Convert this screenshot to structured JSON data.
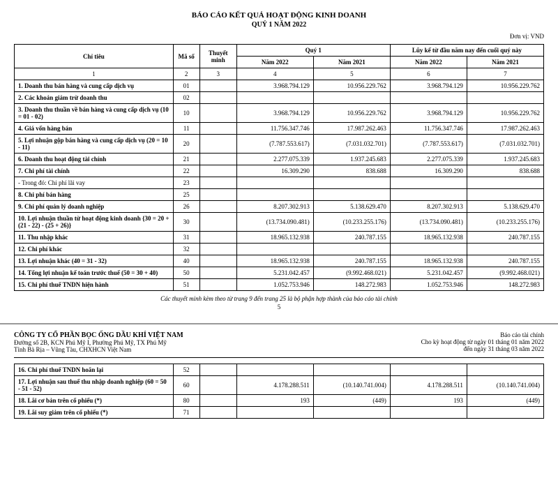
{
  "title1": "BÁO CÁO KẾT QUẢ HOẠT ĐỘNG KINH DOANH",
  "title2": "QUÝ 1 NĂM 2022",
  "unit": "Đơn vị: VND",
  "cols": {
    "chitieu": "Chỉ tiêu",
    "maso": "Mã số",
    "thuyetminh": "Thuyết minh",
    "quy1": "Quý 1",
    "luyke": "Lũy kế từ đầu năm nay đến cuối quý này",
    "n2022": "Năm 2022",
    "n2021": "Năm 2021"
  },
  "idx": {
    "c1": "1",
    "c2": "2",
    "c3": "3",
    "c4": "4",
    "c5": "5",
    "c6": "6",
    "c7": "7"
  },
  "rows": [
    {
      "lbl": "1. Doanh thu bán hàng và cung cấp dịch vụ",
      "ms": "01",
      "tm": "",
      "a": "3.968.794.129",
      "b": "10.956.229.762",
      "c": "3.968.794.129",
      "d": "10.956.229.762"
    },
    {
      "lbl": "2. Các khoản giảm trừ doanh thu",
      "ms": "02",
      "tm": "",
      "a": "",
      "b": "",
      "c": "",
      "d": ""
    },
    {
      "lbl": "3. Doanh thu thuần về bán hàng và cung cấp dịch vụ (10 = 01 - 02)",
      "ms": "10",
      "tm": "",
      "a": "3.968.794.129",
      "b": "10.956.229.762",
      "c": "3.968.794.129",
      "d": "10.956.229.762"
    },
    {
      "lbl": "4. Giá vốn hàng bán",
      "ms": "11",
      "tm": "",
      "a": "11.756.347.746",
      "b": "17.987.262.463",
      "c": "11.756.347.746",
      "d": "17.987.262.463"
    },
    {
      "lbl": "5. Lợi nhuận gộp bán hàng và cung cấp dịch vụ (20 = 10 - 11)",
      "ms": "20",
      "tm": "",
      "a": "(7.787.553.617)",
      "b": "(7.031.032.701)",
      "c": "(7.787.553.617)",
      "d": "(7.031.032.701)"
    },
    {
      "lbl": "6. Doanh thu hoạt động tài chính",
      "ms": "21",
      "tm": "",
      "a": "2.277.075.339",
      "b": "1.937.245.683",
      "c": "2.277.075.339",
      "d": "1.937.245.683"
    },
    {
      "lbl": "7. Chi phí tài chính",
      "ms": "22",
      "tm": "",
      "a": "16.309.290",
      "b": "838.688",
      "c": "16.309.290",
      "d": "838.688"
    },
    {
      "lbl": "- Trong đó: Chi phí lãi vay",
      "ms": "23",
      "tm": "",
      "a": "",
      "b": "",
      "c": "",
      "d": "",
      "plain": true
    },
    {
      "lbl": "8. Chi phí bán hàng",
      "ms": "25",
      "tm": "",
      "a": "",
      "b": "",
      "c": "",
      "d": ""
    },
    {
      "lbl": "9. Chi phí quản lý doanh nghiệp",
      "ms": "26",
      "tm": "",
      "a": "8.207.302.913",
      "b": "5.138.629.470",
      "c": "8.207.302.913",
      "d": "5.138.629.470"
    },
    {
      "lbl": "10. Lợi nhuận thuần từ hoạt động kinh doanh {30 = 20 + (21 - 22) - (25 + 26)}",
      "ms": "30",
      "tm": "",
      "a": "(13.734.090.481)",
      "b": "(10.233.255.176)",
      "c": "(13.734.090.481)",
      "d": "(10.233.255.176)"
    },
    {
      "lbl": "11. Thu nhập khác",
      "ms": "31",
      "tm": "",
      "a": "18.965.132.938",
      "b": "240.787.155",
      "c": "18.965.132.938",
      "d": "240.787.155"
    },
    {
      "lbl": "12. Chi phí khác",
      "ms": "32",
      "tm": "",
      "a": "",
      "b": "",
      "c": "",
      "d": ""
    },
    {
      "lbl": "13. Lợi nhuận khác (40 = 31 - 32)",
      "ms": "40",
      "tm": "",
      "a": "18.965.132.938",
      "b": "240.787.155",
      "c": "18.965.132.938",
      "d": "240.787.155"
    },
    {
      "lbl": "14. Tổng lợi nhuận kế toán trước thuế (50 = 30 + 40)",
      "ms": "50",
      "tm": "",
      "a": "5.231.042.457",
      "b": "(9.992.468.021)",
      "c": "5.231.042.457",
      "d": "(9.992.468.021)"
    },
    {
      "lbl": "15. Chi phí thuế TNDN hiện hành",
      "ms": "51",
      "tm": "",
      "a": "1.052.753.946",
      "b": "148.272.983",
      "c": "1.052.753.946",
      "d": "148.272.983"
    }
  ],
  "footnote": "Các thuyết minh kèm theo từ trang 9 đến trang 25 là bộ phận hợp thành của báo cáo tài chính",
  "pgnum": "5",
  "company": {
    "name": "CÔNG TY CỔ PHẦN BỌC ỐNG DẦU KHÍ VIỆT NAM",
    "addr1": "Đường số 2B, KCN Phú Mỹ I, Phường Phú Mỹ, TX Phú Mỹ",
    "addr2": "Tỉnh Bà Rịa – Vũng Tàu, CHXHCN Việt Nam"
  },
  "report": {
    "t": "Báo cáo tài chính",
    "line1": "Cho kỳ hoạt động từ ngày 01 tháng 01 năm 2022",
    "line2": "đến ngày 31 tháng 03 năm 2022"
  },
  "rows2": [
    {
      "lbl": "16. Chi phí thuế TNDN hoãn lại",
      "ms": "52",
      "tm": "",
      "a": "",
      "b": "",
      "c": "",
      "d": ""
    },
    {
      "lbl": "17. Lợi nhuận sau thuế thu nhập doanh nghiệp (60 = 50 - 51 - 52)",
      "ms": "60",
      "tm": "",
      "a": "4.178.288.511",
      "b": "(10.140.741.004)",
      "c": "4.178.288.511",
      "d": "(10.140.741.004)"
    },
    {
      "lbl": "18. Lãi cơ bản trên cổ phiếu (*)",
      "ms": "80",
      "tm": "",
      "a": "193",
      "b": "(449)",
      "c": "193",
      "d": "(449)"
    },
    {
      "lbl": "19. Lãi suy giảm trên cổ phiếu (*)",
      "ms": "71",
      "tm": "",
      "a": "",
      "b": "",
      "c": "",
      "d": ""
    }
  ],
  "widths": {
    "lbl": "30%",
    "ms": "5%",
    "tm": "7%",
    "v": "14.5%"
  }
}
